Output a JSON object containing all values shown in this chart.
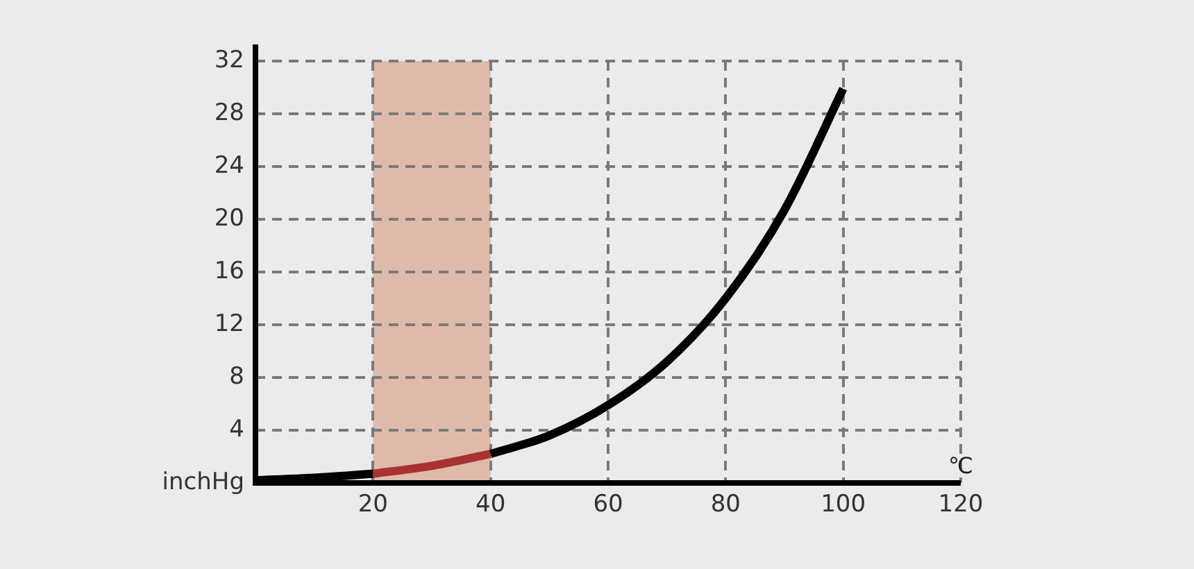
{
  "chart_data": {
    "type": "line",
    "xlabel": "℃",
    "xlim": [
      0,
      120
    ],
    "xticks": [
      20,
      40,
      60,
      80,
      100,
      120
    ],
    "ylim": [
      0,
      32
    ],
    "yticks": [
      {
        "value": 0,
        "label": "inchHg"
      },
      4,
      8,
      12,
      16,
      20,
      24,
      28,
      32
    ],
    "grid": true,
    "line_style": "solid",
    "marker": "none",
    "legend": false,
    "bands": [
      {
        "axis": "x",
        "from": 20,
        "to": 40,
        "color": "#dfbaab"
      }
    ],
    "series": [
      {
        "color": "#000000",
        "x": [
          0,
          10,
          20,
          30,
          40,
          50,
          60,
          70,
          80,
          90,
          100
        ],
        "values": [
          0.2,
          0.4,
          0.7,
          null,
          2.2,
          3.6,
          5.9,
          9.2,
          14.0,
          20.7,
          29.9
        ]
      },
      {
        "color": "#a83232",
        "x": [
          20,
          30,
          40
        ],
        "values": [
          0.7,
          1.3,
          2.2
        ]
      }
    ]
  }
}
